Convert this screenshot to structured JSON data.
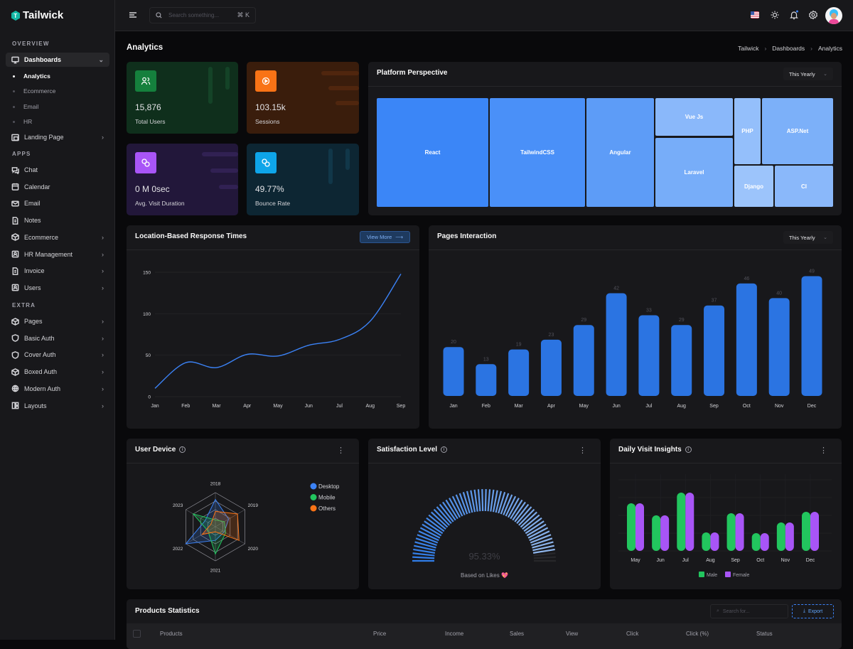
{
  "app": {
    "name": "Tailwick"
  },
  "sidebar": {
    "sections": {
      "overview": "OVERVIEW",
      "apps": "APPS",
      "extra": "EXTRA"
    },
    "dashboards": "Dashboards",
    "dash_sub": [
      "Analytics",
      "Ecommerce",
      "Email",
      "HR"
    ],
    "landing": "Landing Page",
    "apps": [
      "Chat",
      "Calendar",
      "Email",
      "Notes",
      "Ecommerce",
      "HR Management",
      "Invoice",
      "Users"
    ],
    "extra": [
      "Pages",
      "Basic Auth",
      "Cover Auth",
      "Boxed Auth",
      "Modern Auth",
      "Layouts"
    ]
  },
  "topbar": {
    "search_placeholder": "Search something...",
    "shortcut": "⌘ K"
  },
  "page": {
    "title": "Analytics",
    "breadcrumb": [
      "Tailwick",
      "Dashboards",
      "Analytics"
    ]
  },
  "stats": [
    {
      "value": "15,876",
      "label": "Total Users",
      "color": "#15803d"
    },
    {
      "value": "103.15k",
      "label": "Sessions",
      "color": "#f97316"
    },
    {
      "value": "0 M 0sec",
      "label": "Avg. Visit Duration",
      "color": "#a855f7"
    },
    {
      "value": "49.77%",
      "label": "Bounce Rate",
      "color": "#0ea5e9"
    }
  ],
  "platform": {
    "title": "Platform Perspective",
    "filter": "This Yearly",
    "items": [
      "React",
      "TailwindCSS",
      "Angular",
      "Vue Js",
      "Laravel",
      "PHP",
      "ASP.Net",
      "Django",
      "CI"
    ]
  },
  "location": {
    "title": "Location-Based Response Times",
    "button": "View More"
  },
  "pages": {
    "title": "Pages Interaction",
    "filter": "This Yearly"
  },
  "device": {
    "title": "User Device"
  },
  "satisfaction": {
    "title": "Satisfaction Level",
    "value": "95.33%",
    "caption": "Based on Likes 💖"
  },
  "daily": {
    "title": "Daily Visit Insights"
  },
  "products": {
    "title": "Products Statistics",
    "search_placeholder": "Search for...",
    "export": "Export",
    "columns": [
      "Products",
      "Price",
      "Income",
      "Sales",
      "View",
      "Click",
      "Click (%)",
      "Status"
    ]
  },
  "chart_data": [
    {
      "type": "line",
      "title": "Location-Based Response Times",
      "categories": [
        "Jan",
        "Feb",
        "Mar",
        "Apr",
        "May",
        "Jun",
        "Jul",
        "Aug",
        "Sep"
      ],
      "values": [
        10,
        41,
        35,
        51,
        49,
        62,
        69,
        91,
        148
      ],
      "yticks": [
        "0",
        "50",
        "100",
        "150"
      ],
      "ylim": [
        0,
        150
      ],
      "color": "#3b82f6"
    },
    {
      "type": "bar",
      "title": "Pages Interaction",
      "categories": [
        "Jan",
        "Feb",
        "Mar",
        "Apr",
        "May",
        "Jun",
        "Jul",
        "Aug",
        "Sep",
        "Oct",
        "Nov",
        "Dec"
      ],
      "values": [
        20,
        13,
        19,
        23,
        29,
        42,
        33,
        29,
        37,
        46,
        40,
        49
      ],
      "labels": [
        "20",
        "13",
        "19",
        "23",
        "29",
        "42",
        "33",
        "29",
        "37",
        "46",
        "40",
        "49"
      ],
      "ylim": [
        0,
        50
      ],
      "color": "#2b74e2"
    },
    {
      "type": "radar",
      "title": "User Device",
      "axes": [
        "2018",
        "2019",
        "2020",
        "2021",
        "2022",
        "2023"
      ],
      "ylim": [
        0,
        100
      ],
      "series": [
        {
          "name": "Desktop",
          "color": "#3b82f6",
          "values": [
            80,
            45,
            30,
            40,
            100,
            35
          ]
        },
        {
          "name": "Mobile",
          "color": "#22c55e",
          "values": [
            20,
            30,
            35,
            80,
            25,
            75
          ]
        },
        {
          "name": "Others",
          "color": "#f97316",
          "values": [
            45,
            75,
            80,
            15,
            45,
            15
          ]
        }
      ]
    },
    {
      "type": "gauge",
      "title": "Satisfaction Level",
      "value": 95.33,
      "max": 100
    },
    {
      "type": "bar",
      "title": "Daily Visit Insights",
      "categories": [
        "May",
        "Jun",
        "Jul",
        "Aug",
        "Sep",
        "Oct",
        "Nov",
        "Dec"
      ],
      "series": [
        {
          "name": "Male",
          "color": "#22c55e",
          "values": [
            67,
            50,
            82,
            26,
            53,
            25,
            40,
            55
          ]
        },
        {
          "name": "Female",
          "color": "#a855f7",
          "values": [
            67,
            50,
            82,
            26,
            53,
            25,
            40,
            55
          ]
        }
      ],
      "ylim": [
        0,
        100
      ]
    }
  ]
}
